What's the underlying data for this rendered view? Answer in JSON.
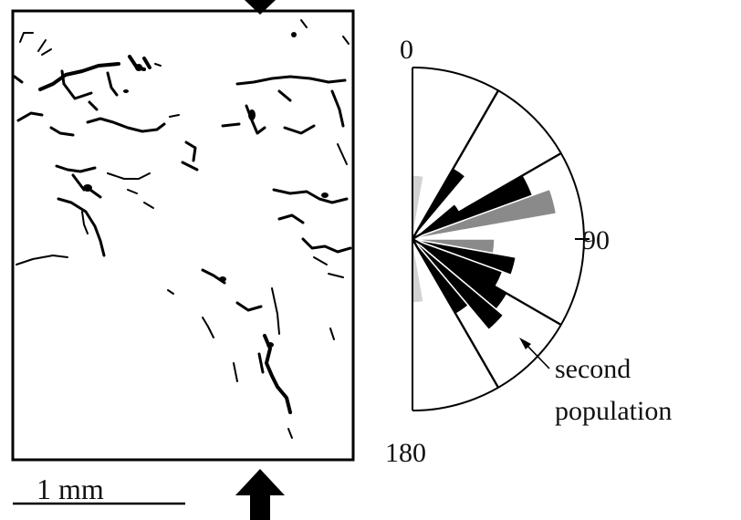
{
  "figure": {
    "scale_bar": {
      "label": "1 mm"
    },
    "rose": {
      "labels": {
        "top": "0",
        "right": "90",
        "bottom": "180"
      },
      "annotation": {
        "line1": "second",
        "line2": "population"
      },
      "colors": {
        "black": "#000000",
        "gray": "#8a8a8a",
        "light": "#d2d2d2"
      }
    }
  }
}
